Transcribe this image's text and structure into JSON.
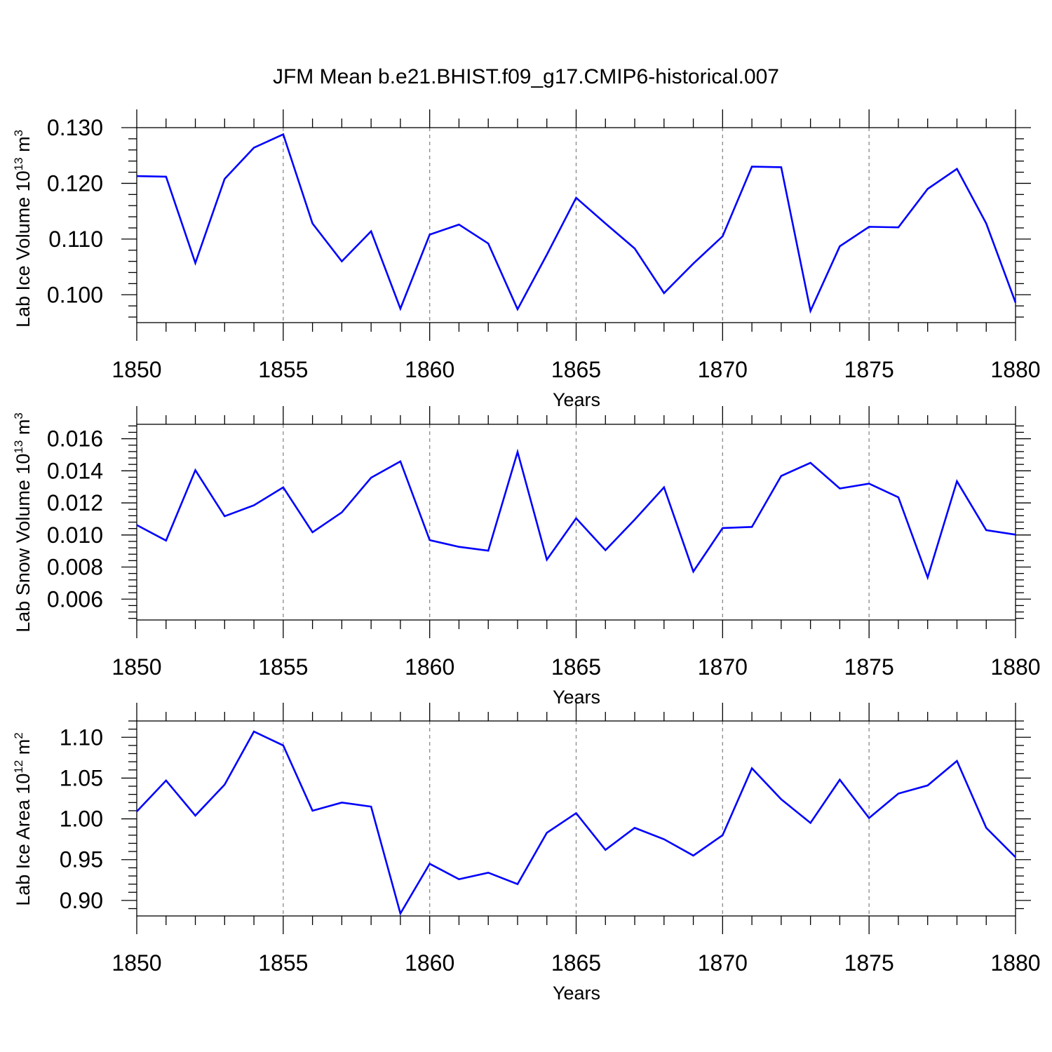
{
  "title": "JFM Mean b.e21.BHIST.f09_g17.CMIP6-historical.007",
  "chart_data": [
    {
      "type": "line",
      "ylabel_main": "Lab Ice Volume 10",
      "ylabel_exp": "13",
      "ylabel_unit": " m",
      "ylabel_unit_exp": "3",
      "xlabel": "Years",
      "xlim": [
        1850,
        1880
      ],
      "ylim": [
        0.095,
        0.13
      ],
      "yticks": [
        0.1,
        0.11,
        0.12,
        0.13
      ],
      "ytick_labels": [
        "0.100",
        "0.110",
        "0.120",
        "0.130"
      ],
      "yminor_step": 0.002,
      "xticks": [
        1850,
        1855,
        1860,
        1865,
        1870,
        1875,
        1880
      ],
      "xtick_labels": [
        "1850",
        "1855",
        "1860",
        "1865",
        "1870",
        "1875",
        "1880"
      ],
      "vgrid": [
        1855,
        1860,
        1865,
        1870,
        1875
      ],
      "color": "#0000ff",
      "x": [
        1850,
        1851,
        1852,
        1853,
        1854,
        1855,
        1856,
        1857,
        1858,
        1859,
        1860,
        1861,
        1862,
        1863,
        1864,
        1865,
        1866,
        1867,
        1868,
        1869,
        1870,
        1871,
        1872,
        1873,
        1874,
        1875,
        1876,
        1877,
        1878,
        1879,
        1880
      ],
      "values": [
        0.1213,
        0.1212,
        0.1057,
        0.1208,
        0.1264,
        0.1288,
        0.1128,
        0.106,
        0.1114,
        0.0975,
        0.1108,
        0.1126,
        0.1092,
        0.0974,
        0.1072,
        0.1174,
        0.1128,
        0.1083,
        0.1003,
        0.1056,
        0.1105,
        0.123,
        0.1229,
        0.0971,
        0.1087,
        0.1122,
        0.1121,
        0.119,
        0.1226,
        0.1128,
        0.0986
      ]
    },
    {
      "type": "line",
      "ylabel_main": "Lab Snow Volume 10",
      "ylabel_exp": "13",
      "ylabel_unit": " m",
      "ylabel_unit_exp": "3",
      "xlabel": "Years",
      "xlim": [
        1850,
        1880
      ],
      "ylim": [
        0.0047,
        0.0169
      ],
      "yticks": [
        0.006,
        0.008,
        0.01,
        0.012,
        0.014,
        0.016
      ],
      "ytick_labels": [
        "0.006",
        "0.008",
        "0.010",
        "0.012",
        "0.014",
        "0.016"
      ],
      "yminor_step": 0.0004,
      "xticks": [
        1850,
        1855,
        1860,
        1865,
        1870,
        1875,
        1880
      ],
      "xtick_labels": [
        "1850",
        "1855",
        "1860",
        "1865",
        "1870",
        "1875",
        "1880"
      ],
      "vgrid": [
        1855,
        1860,
        1865,
        1870,
        1875
      ],
      "color": "#0000ff",
      "x": [
        1850,
        1851,
        1852,
        1853,
        1854,
        1855,
        1856,
        1857,
        1858,
        1859,
        1860,
        1861,
        1862,
        1863,
        1864,
        1865,
        1866,
        1867,
        1868,
        1869,
        1870,
        1871,
        1872,
        1873,
        1874,
        1875,
        1876,
        1877,
        1878,
        1879,
        1880
      ],
      "values": [
        0.01062,
        0.00965,
        0.01404,
        0.01117,
        0.01185,
        0.01297,
        0.01017,
        0.01141,
        0.01357,
        0.01459,
        0.00968,
        0.00926,
        0.00902,
        0.01518,
        0.00846,
        0.01104,
        0.00905,
        0.01096,
        0.01297,
        0.00772,
        0.01043,
        0.0105,
        0.01368,
        0.0145,
        0.0129,
        0.0132,
        0.01235,
        0.00735,
        0.01335,
        0.0103,
        0.01002
      ]
    },
    {
      "type": "line",
      "ylabel_main": "Lab Ice Area 10",
      "ylabel_exp": "12",
      "ylabel_unit": " m",
      "ylabel_unit_exp": "2",
      "xlabel": "Years",
      "xlim": [
        1850,
        1880
      ],
      "ylim": [
        0.881,
        1.12
      ],
      "yticks": [
        0.9,
        0.95,
        1.0,
        1.05,
        1.1
      ],
      "ytick_labels": [
        "0.90",
        "0.95",
        "1.00",
        "1.05",
        "1.10"
      ],
      "yminor_step": 0.01,
      "xticks": [
        1850,
        1855,
        1860,
        1865,
        1870,
        1875,
        1880
      ],
      "xtick_labels": [
        "1850",
        "1855",
        "1860",
        "1865",
        "1870",
        "1875",
        "1880"
      ],
      "vgrid": [
        1855,
        1860,
        1865,
        1870,
        1875
      ],
      "color": "#0000ff",
      "x": [
        1850,
        1851,
        1852,
        1853,
        1854,
        1855,
        1856,
        1857,
        1858,
        1859,
        1860,
        1861,
        1862,
        1863,
        1864,
        1865,
        1866,
        1867,
        1868,
        1869,
        1870,
        1871,
        1872,
        1873,
        1874,
        1875,
        1876,
        1877,
        1878,
        1879,
        1880
      ],
      "values": [
        1.009,
        1.047,
        1.004,
        1.042,
        1.107,
        1.09,
        1.01,
        1.02,
        1.015,
        0.884,
        0.945,
        0.926,
        0.934,
        0.92,
        0.983,
        1.007,
        0.962,
        0.989,
        0.975,
        0.955,
        0.98,
        1.062,
        1.024,
        0.995,
        1.048,
        1.001,
        1.031,
        1.041,
        1.071,
        0.989,
        0.953
      ]
    }
  ]
}
